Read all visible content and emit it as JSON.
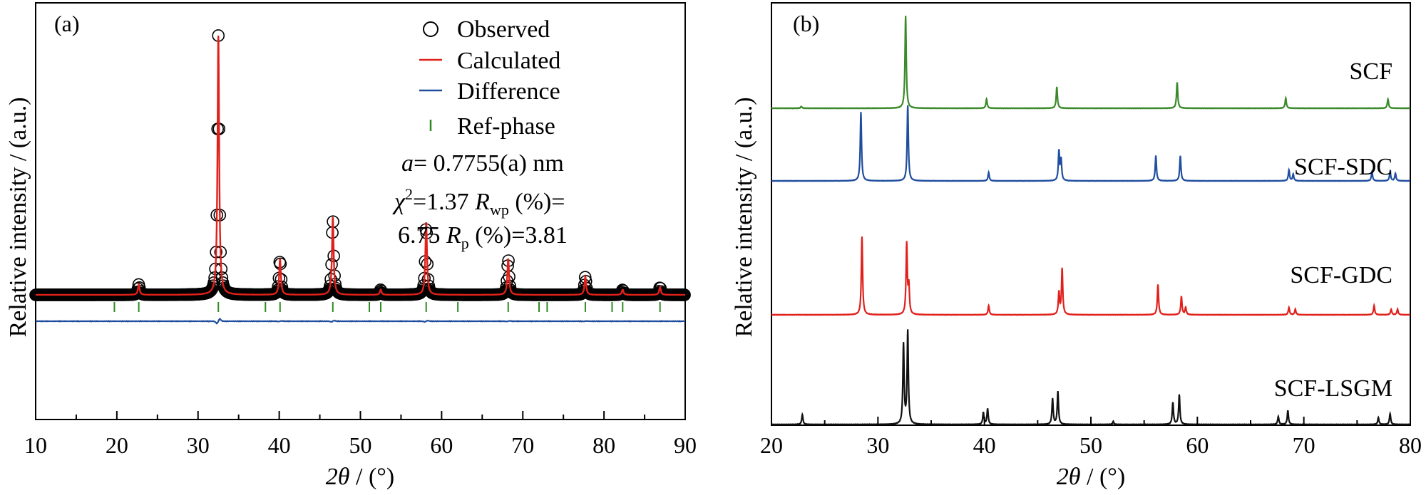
{
  "colors": {
    "observed": "#000000",
    "calculated": "#e0201b",
    "difference": "#1f4e9e",
    "ref_phase": "#2e8b22",
    "scf": "#3a8a2a",
    "scf_sdc": "#1f4e9e",
    "scf_gdc": "#e0201b",
    "scf_lsgm": "#111111"
  },
  "chart_data": [
    {
      "type": "line",
      "panel_label": "(a)",
      "xlabel_italic": "2θ",
      "xlabel_rest": " / (°)",
      "ylabel": "Relative intensity / (a.u.)",
      "xlim": [
        10,
        90
      ],
      "x_ticks": [
        10,
        20,
        30,
        40,
        50,
        60,
        70,
        80,
        90
      ],
      "y_ticks": [],
      "legend": {
        "placement": "top-right",
        "entries": [
          {
            "marker": "circle",
            "label": "Observed"
          },
          {
            "marker": "line-red",
            "label": "Calculated"
          },
          {
            "marker": "line-blue",
            "label": "Difference"
          },
          {
            "marker": "tick-green",
            "label": "Ref-phase"
          }
        ]
      },
      "annotations": {
        "lattice_sym": "a",
        "lattice_rest": "= 0.7755(a) nm",
        "chi_sym": "χ",
        "chi_sup": "2",
        "chi_val": "=1.37 ",
        "rwp_sym": "R",
        "rwp_sub": "wp",
        "rwp_rest": " (%)=",
        "rp_val": "6.75 ",
        "rp_sym": "R",
        "rp_sub": "p",
        "rp_rest": " (%)=3.81"
      },
      "peaks": [
        {
          "x": 22.7,
          "h": 4
        },
        {
          "x": 32.5,
          "h": 100
        },
        {
          "x": 40.1,
          "h": 14
        },
        {
          "x": 46.6,
          "h": 30
        },
        {
          "x": 52.5,
          "h": 2
        },
        {
          "x": 58.1,
          "h": 28
        },
        {
          "x": 68.2,
          "h": 14
        },
        {
          "x": 77.7,
          "h": 7
        },
        {
          "x": 82.3,
          "h": 2
        },
        {
          "x": 86.9,
          "h": 3
        }
      ],
      "ref_phase_positions": [
        19.7,
        22.7,
        32.5,
        38.3,
        40.1,
        46.6,
        51.1,
        52.5,
        58.1,
        62.0,
        68.2,
        72.0,
        73.0,
        77.7,
        81.0,
        82.3,
        86.9
      ]
    },
    {
      "type": "line",
      "panel_label": "(b)",
      "xlabel_italic": "2θ",
      "xlabel_rest": " / (°)",
      "ylabel": "Relative intensity / (a.u.)",
      "xlim": [
        20,
        80
      ],
      "x_ticks": [
        20,
        30,
        40,
        50,
        60,
        70,
        80
      ],
      "y_ticks": [],
      "series": [
        {
          "name": "SCF",
          "offset": 3,
          "peaks": [
            {
              "x": 22.8,
              "h": 2
            },
            {
              "x": 32.6,
              "h": 100
            },
            {
              "x": 40.2,
              "h": 10
            },
            {
              "x": 46.8,
              "h": 23
            },
            {
              "x": 58.1,
              "h": 28
            },
            {
              "x": 68.3,
              "h": 11
            },
            {
              "x": 77.9,
              "h": 10
            }
          ]
        },
        {
          "name": "SCF-SDC",
          "offset": 2,
          "peaks": [
            {
              "x": 28.4,
              "h": 82
            },
            {
              "x": 32.8,
              "h": 90
            },
            {
              "x": 40.4,
              "h": 10
            },
            {
              "x": 47.0,
              "h": 35
            },
            {
              "x": 47.2,
              "h": 25
            },
            {
              "x": 56.1,
              "h": 30
            },
            {
              "x": 58.4,
              "h": 30
            },
            {
              "x": 68.6,
              "h": 13
            },
            {
              "x": 69.0,
              "h": 8
            },
            {
              "x": 76.4,
              "h": 11
            },
            {
              "x": 78.1,
              "h": 11
            },
            {
              "x": 78.6,
              "h": 9
            }
          ]
        },
        {
          "name": "SCF-GDC",
          "offset": 1,
          "peaks": [
            {
              "x": 28.5,
              "h": 85
            },
            {
              "x": 32.7,
              "h": 77
            },
            {
              "x": 32.9,
              "h": 30
            },
            {
              "x": 40.4,
              "h": 10
            },
            {
              "x": 47.0,
              "h": 24
            },
            {
              "x": 47.3,
              "h": 50
            },
            {
              "x": 56.3,
              "h": 33
            },
            {
              "x": 58.5,
              "h": 20
            },
            {
              "x": 58.9,
              "h": 8
            },
            {
              "x": 68.6,
              "h": 8
            },
            {
              "x": 69.2,
              "h": 6
            },
            {
              "x": 76.6,
              "h": 10
            },
            {
              "x": 78.2,
              "h": 6
            },
            {
              "x": 78.8,
              "h": 6
            }
          ]
        },
        {
          "name": "SCF-LSGM",
          "offset": 0,
          "peaks": [
            {
              "x": 22.9,
              "h": 10
            },
            {
              "x": 32.4,
              "h": 80
            },
            {
              "x": 32.8,
              "h": 93
            },
            {
              "x": 39.9,
              "h": 12
            },
            {
              "x": 40.3,
              "h": 16
            },
            {
              "x": 46.4,
              "h": 26
            },
            {
              "x": 46.9,
              "h": 33
            },
            {
              "x": 52.1,
              "h": 3
            },
            {
              "x": 57.7,
              "h": 22
            },
            {
              "x": 58.3,
              "h": 30
            },
            {
              "x": 67.6,
              "h": 8
            },
            {
              "x": 68.5,
              "h": 14
            },
            {
              "x": 77.0,
              "h": 7
            },
            {
              "x": 78.1,
              "h": 11
            }
          ]
        }
      ]
    }
  ]
}
